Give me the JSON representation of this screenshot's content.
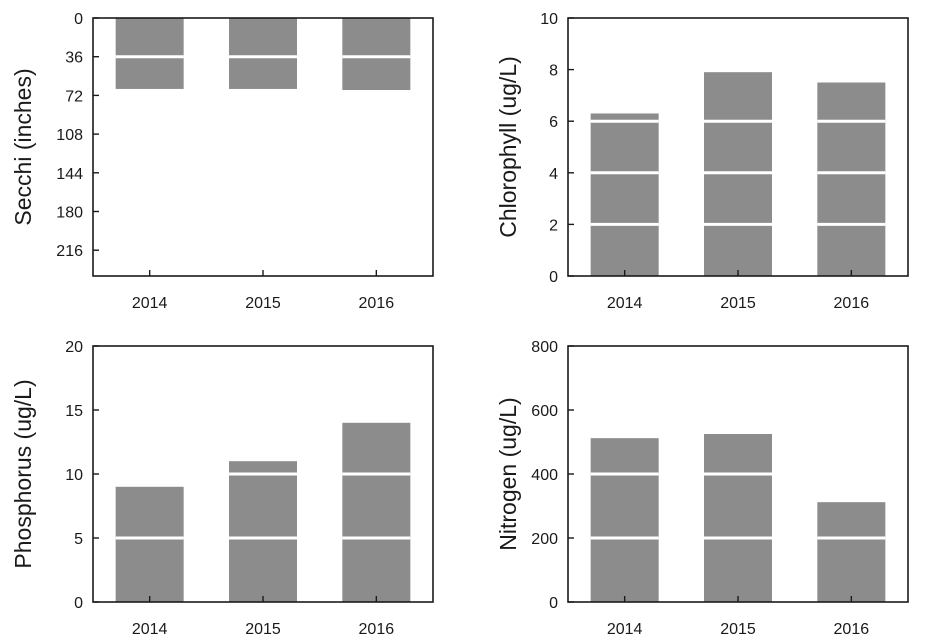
{
  "chart_data": [
    {
      "type": "bar",
      "id": "secchi",
      "ylabel": "Secchi (inches)",
      "categories": [
        "2014",
        "2015",
        "2016"
      ],
      "values": [
        66,
        66,
        67
      ],
      "ylim": [
        0,
        240
      ],
      "y_inverted": true,
      "y_ticks": [
        0,
        36,
        72,
        108,
        144,
        180,
        216
      ],
      "white_gridlines": [
        36
      ],
      "bar_color": "#8c8c8c"
    },
    {
      "type": "bar",
      "id": "chlorophyll",
      "ylabel": "Chlorophyll (ug/L)",
      "categories": [
        "2014",
        "2015",
        "2016"
      ],
      "values": [
        6.3,
        7.9,
        7.5
      ],
      "ylim": [
        0,
        10
      ],
      "y_inverted": false,
      "y_ticks": [
        0,
        2,
        4,
        6,
        8,
        10
      ],
      "white_gridlines": [
        2,
        4,
        6
      ],
      "bar_color": "#8c8c8c"
    },
    {
      "type": "bar",
      "id": "phosphorus",
      "ylabel": "Phosphorus (ug/L)",
      "categories": [
        "2014",
        "2015",
        "2016"
      ],
      "values": [
        9,
        11,
        14
      ],
      "ylim": [
        0,
        20
      ],
      "y_inverted": false,
      "y_ticks": [
        0,
        5,
        10,
        15,
        20
      ],
      "white_gridlines": [
        5,
        10
      ],
      "bar_color": "#8c8c8c"
    },
    {
      "type": "bar",
      "id": "nitrogen",
      "ylabel": "Nitrogen (ug/L)",
      "categories": [
        "2014",
        "2015",
        "2016"
      ],
      "values": [
        512,
        525,
        312
      ],
      "ylim": [
        0,
        800
      ],
      "y_inverted": false,
      "y_ticks": [
        0,
        200,
        400,
        600,
        800
      ],
      "white_gridlines": [
        200,
        400
      ],
      "bar_color": "#8c8c8c"
    }
  ]
}
